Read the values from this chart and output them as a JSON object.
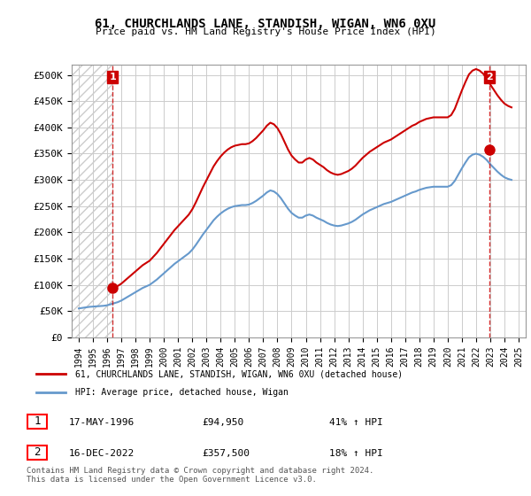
{
  "title": "61, CHURCHLANDS LANE, STANDISH, WIGAN, WN6 0XU",
  "subtitle": "Price paid vs. HM Land Registry's House Price Index (HPI)",
  "legend_line1": "61, CHURCHLANDS LANE, STANDISH, WIGAN, WN6 0XU (detached house)",
  "legend_line2": "HPI: Average price, detached house, Wigan",
  "sale1_label": "1",
  "sale1_date": "17-MAY-1996",
  "sale1_price": "£94,950",
  "sale1_hpi": "41% ↑ HPI",
  "sale1_x": 1996.38,
  "sale1_y": 94950,
  "sale2_label": "2",
  "sale2_date": "16-DEC-2022",
  "sale2_price": "£357,500",
  "sale2_hpi": "18% ↑ HPI",
  "sale2_x": 2022.96,
  "sale2_y": 357500,
  "xlim": [
    1993.5,
    2025.5
  ],
  "ylim": [
    0,
    520000
  ],
  "yticks": [
    0,
    50000,
    100000,
    150000,
    200000,
    250000,
    300000,
    350000,
    400000,
    450000,
    500000
  ],
  "ytick_labels": [
    "£0",
    "£50K",
    "£100K",
    "£150K",
    "£200K",
    "£250K",
    "£300K",
    "£350K",
    "£400K",
    "£450K",
    "£500K"
  ],
  "xticks": [
    1994,
    1995,
    1996,
    1997,
    1998,
    1999,
    2000,
    2001,
    2002,
    2003,
    2004,
    2005,
    2006,
    2007,
    2008,
    2009,
    2010,
    2011,
    2012,
    2013,
    2014,
    2015,
    2016,
    2017,
    2018,
    2019,
    2020,
    2021,
    2022,
    2023,
    2024,
    2025
  ],
  "red_color": "#cc0000",
  "blue_color": "#6699cc",
  "sale_marker_color": "#cc0000",
  "bg_color": "#ffffff",
  "plot_bg_color": "#ffffff",
  "grid_color": "#cccccc",
  "hatch_color": "#dddddd",
  "footer": "Contains HM Land Registry data © Crown copyright and database right 2024.\nThis data is licensed under the Open Government Licence v3.0.",
  "hpi_data_x": [
    1994.0,
    1994.25,
    1994.5,
    1994.75,
    1995.0,
    1995.25,
    1995.5,
    1995.75,
    1996.0,
    1996.25,
    1996.5,
    1996.75,
    1997.0,
    1997.25,
    1997.5,
    1997.75,
    1998.0,
    1998.25,
    1998.5,
    1998.75,
    1999.0,
    1999.25,
    1999.5,
    1999.75,
    2000.0,
    2000.25,
    2000.5,
    2000.75,
    2001.0,
    2001.25,
    2001.5,
    2001.75,
    2002.0,
    2002.25,
    2002.5,
    2002.75,
    2003.0,
    2003.25,
    2003.5,
    2003.75,
    2004.0,
    2004.25,
    2004.5,
    2004.75,
    2005.0,
    2005.25,
    2005.5,
    2005.75,
    2006.0,
    2006.25,
    2006.5,
    2006.75,
    2007.0,
    2007.25,
    2007.5,
    2007.75,
    2008.0,
    2008.25,
    2008.5,
    2008.75,
    2009.0,
    2009.25,
    2009.5,
    2009.75,
    2010.0,
    2010.25,
    2010.5,
    2010.75,
    2011.0,
    2011.25,
    2011.5,
    2011.75,
    2012.0,
    2012.25,
    2012.5,
    2012.75,
    2013.0,
    2013.25,
    2013.5,
    2013.75,
    2014.0,
    2014.25,
    2014.5,
    2014.75,
    2015.0,
    2015.25,
    2015.5,
    2015.75,
    2016.0,
    2016.25,
    2016.5,
    2016.75,
    2017.0,
    2017.25,
    2017.5,
    2017.75,
    2018.0,
    2018.25,
    2018.5,
    2018.75,
    2019.0,
    2019.25,
    2019.5,
    2019.75,
    2020.0,
    2020.25,
    2020.5,
    2020.75,
    2021.0,
    2021.25,
    2021.5,
    2021.75,
    2022.0,
    2022.25,
    2022.5,
    2022.75,
    2023.0,
    2023.25,
    2023.5,
    2023.75,
    2024.0,
    2024.25,
    2024.5
  ],
  "hpi_data_y": [
    55000,
    56000,
    57000,
    58000,
    58500,
    59000,
    59500,
    60000,
    61000,
    63000,
    65000,
    67000,
    70000,
    74000,
    78000,
    82000,
    86000,
    90000,
    94000,
    97000,
    100000,
    105000,
    110000,
    116000,
    122000,
    128000,
    134000,
    140000,
    145000,
    150000,
    155000,
    160000,
    167000,
    176000,
    186000,
    196000,
    205000,
    214000,
    223000,
    230000,
    236000,
    241000,
    245000,
    248000,
    250000,
    251000,
    252000,
    252000,
    253000,
    256000,
    260000,
    265000,
    270000,
    276000,
    280000,
    278000,
    273000,
    265000,
    255000,
    245000,
    237000,
    232000,
    228000,
    228000,
    232000,
    234000,
    232000,
    228000,
    225000,
    222000,
    218000,
    215000,
    213000,
    212000,
    213000,
    215000,
    217000,
    220000,
    224000,
    229000,
    234000,
    238000,
    242000,
    245000,
    248000,
    251000,
    254000,
    256000,
    258000,
    261000,
    264000,
    267000,
    270000,
    273000,
    276000,
    278000,
    281000,
    283000,
    285000,
    286000,
    287000,
    287000,
    287000,
    287000,
    287000,
    290000,
    298000,
    310000,
    322000,
    333000,
    343000,
    348000,
    350000,
    348000,
    344000,
    338000,
    330000,
    323000,
    316000,
    310000,
    305000,
    302000,
    300000
  ],
  "price_data_x": [
    1996.38,
    2022.96
  ],
  "price_data_y": [
    94950,
    357500
  ]
}
